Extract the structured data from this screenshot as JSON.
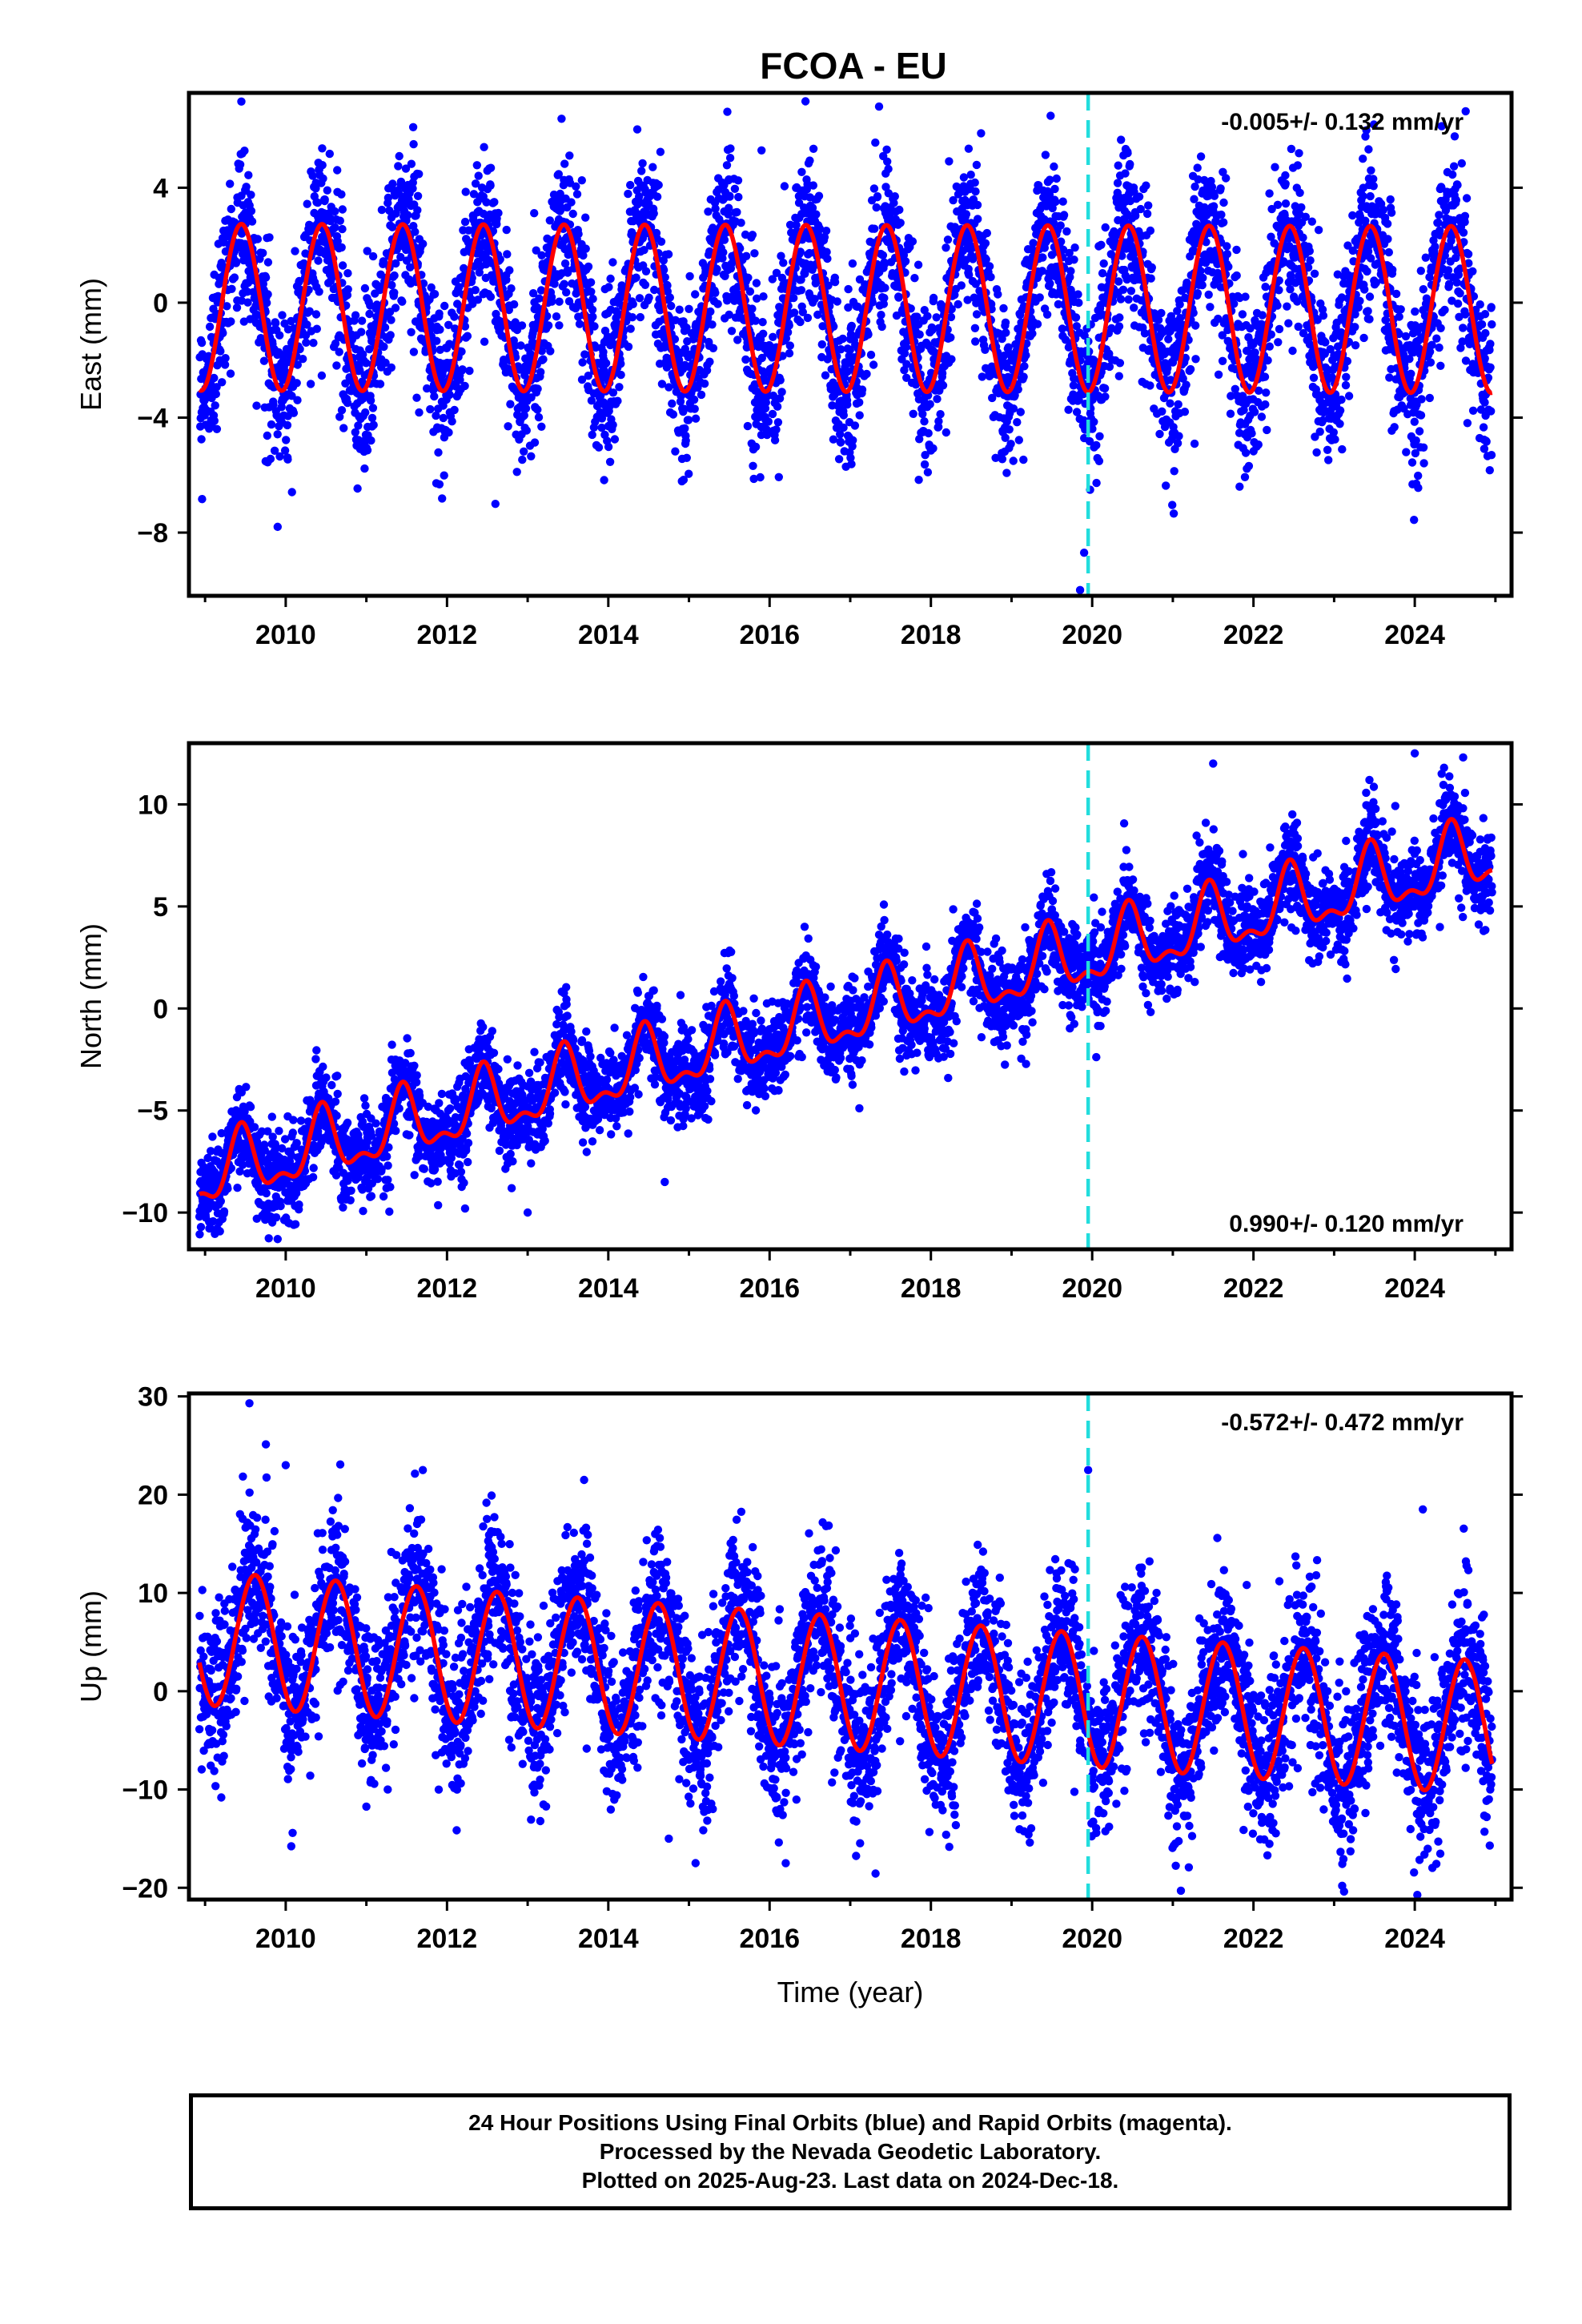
{
  "title": "FCOA - EU",
  "colors": {
    "data_points": "#0000ff",
    "model_line": "#ff0000",
    "event_line": "#22dddd",
    "frame": "#000000"
  },
  "chart_data": [
    {
      "type": "scatter",
      "name": "east",
      "ylabel": "East (mm)",
      "xlabel": "",
      "xlim": [
        2008.8,
        2025.2
      ],
      "ylim": [
        -10.2,
        7.3
      ],
      "xticks": [
        2010,
        2012,
        2014,
        2016,
        2018,
        2020,
        2022,
        2024
      ],
      "yticks": [
        -8,
        -4,
        0,
        4
      ],
      "ytick_labels": [
        "−8",
        "−4",
        "0",
        "4"
      ],
      "rate_text": "-0.005+/- 0.132 mm/yr",
      "rate_position": "top-right",
      "event_line_x": 2019.95,
      "model": {
        "offset": -0.2,
        "rate": -0.005,
        "amplitude": 2.9,
        "phase_peak": 0.45,
        "semi_amplitude": 0.0,
        "ref_year": 2017.0
      },
      "scatter_sigma": 1.4,
      "outliers": [
        [
          2009.45,
          7.0
        ],
        [
          2009.9,
          -7.8
        ],
        [
          2019.85,
          -10.0
        ],
        [
          2019.9,
          -8.7
        ],
        [
          2012.6,
          -7.0
        ],
        [
          2023.4,
          6.0
        ],
        [
          2015.9,
          5.3
        ]
      ]
    },
    {
      "type": "scatter",
      "name": "north",
      "ylabel": "North (mm)",
      "xlabel": "",
      "xlim": [
        2008.8,
        2025.2
      ],
      "ylim": [
        -11.8,
        13.0
      ],
      "xticks": [
        2010,
        2012,
        2014,
        2016,
        2018,
        2020,
        2022,
        2024
      ],
      "yticks": [
        -10,
        -5,
        0,
        5,
        10
      ],
      "ytick_labels": [
        "−10",
        "−5",
        "0",
        "5",
        "10"
      ],
      "rate_text": "0.990+/- 0.120 mm/yr",
      "rate_position": "bottom-right",
      "event_line_x": 2019.95,
      "model": {
        "offset": -0.3,
        "rate": 0.99,
        "amplitude": 1.5,
        "phase_peak": 0.45,
        "semi_amplitude": 0.7,
        "ref_year": 2017.0
      },
      "scatter_sigma": 1.1,
      "outliers": [
        [
          2009.9,
          -11.3
        ],
        [
          2013.0,
          -10.0
        ],
        [
          2024.0,
          12.5
        ],
        [
          2021.5,
          12.0
        ],
        [
          2024.6,
          12.3
        ],
        [
          2014.7,
          -8.5
        ]
      ]
    },
    {
      "type": "scatter",
      "name": "up",
      "ylabel": "Up (mm)",
      "xlabel": "Time (year)",
      "xlim": [
        2008.8,
        2025.2
      ],
      "ylim": [
        -21.2,
        30.3
      ],
      "xticks": [
        2010,
        2012,
        2014,
        2016,
        2018,
        2020,
        2022,
        2024
      ],
      "yticks": [
        -20,
        -10,
        0,
        10,
        20,
        30
      ],
      "ytick_labels": [
        "−20",
        "−10",
        "0",
        "10",
        "20",
        "30"
      ],
      "rate_text": "-0.572+/- 0.472 mm/yr",
      "rate_position": "top-right",
      "event_line_x": 2019.95,
      "model": {
        "offset": 0.8,
        "rate": -0.572,
        "amplitude": 6.8,
        "phase_peak": 0.62,
        "semi_amplitude": 0.0,
        "ref_year": 2017.0
      },
      "scatter_sigma": 4.0,
      "outliers": [
        [
          2009.55,
          29.3
        ],
        [
          2010.0,
          23.0
        ],
        [
          2011.7,
          22.5
        ],
        [
          2013.7,
          21.5
        ],
        [
          2019.95,
          22.5
        ],
        [
          2021.1,
          -20.3
        ],
        [
          2023.1,
          -19.8
        ],
        [
          2014.75,
          -15.0
        ],
        [
          2016.2,
          -17.5
        ],
        [
          2024.1,
          18.5
        ]
      ]
    }
  ],
  "footer": {
    "line1": "24 Hour Positions Using Final Orbits (blue) and Rapid Orbits (magenta).",
    "line2": "Processed by the Nevada Geodetic Laboratory.",
    "line3": "Plotted on 2025-Aug-23. Last data on 2024-Dec-18."
  }
}
